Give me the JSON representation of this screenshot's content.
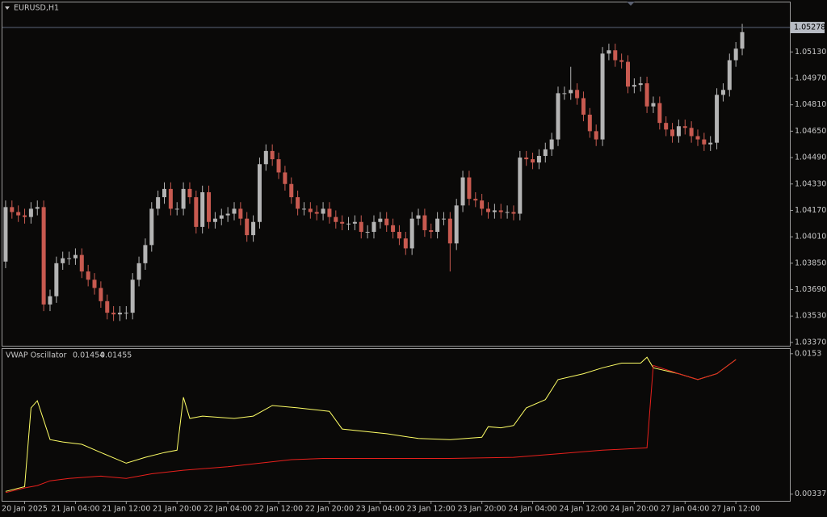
{
  "chart_data": [
    {
      "type": "candlestick",
      "title": "EURUSD,H1",
      "xlim": [
        -0.5,
        123.5
      ],
      "ylim": [
        1.0335,
        1.0543
      ],
      "up_color": "#b4b4b4",
      "down_color": "#c85a50",
      "current_price": 1.05278,
      "yticks": [
        {
          "value": 1.0513,
          "label": "1.05130"
        },
        {
          "value": 1.0497,
          "label": "1.04970"
        },
        {
          "value": 1.0481,
          "label": "1.04810"
        },
        {
          "value": 1.0465,
          "label": "1.04650"
        },
        {
          "value": 1.0449,
          "label": "1.04490"
        },
        {
          "value": 1.0433,
          "label": "1.04330"
        },
        {
          "value": 1.0417,
          "label": "1.04170"
        },
        {
          "value": 1.0401,
          "label": "1.04010"
        },
        {
          "value": 1.0385,
          "label": "1.03850"
        },
        {
          "value": 1.0369,
          "label": "1.03690"
        },
        {
          "value": 1.0353,
          "label": "1.03530"
        },
        {
          "value": 1.0337,
          "label": "1.03370"
        }
      ],
      "open": [
        1.0386,
        1.0419,
        1.0416,
        1.0414,
        1.0413,
        1.0418,
        1.0419,
        1.036,
        1.0365,
        1.0385,
        1.0388,
        1.0388,
        1.039,
        1.038,
        1.0375,
        1.037,
        1.0362,
        1.0355,
        1.0354,
        1.0355,
        1.0355,
        1.0375,
        1.0385,
        1.0396,
        1.0418,
        1.0425,
        1.043,
        1.0418,
        1.0418,
        1.043,
        1.0425,
        1.0407,
        1.0428,
        1.041,
        1.0412,
        1.0414,
        1.0415,
        1.0418,
        1.0412,
        1.0402,
        1.041,
        1.0445,
        1.0453,
        1.0448,
        1.044,
        1.0433,
        1.0425,
        1.0418,
        1.0418,
        1.0416,
        1.0415,
        1.0418,
        1.0413,
        1.041,
        1.0409,
        1.0409,
        1.041,
        1.0404,
        1.0404,
        1.041,
        1.0412,
        1.0408,
        1.0404,
        1.04,
        1.0394,
        1.0412,
        1.0414,
        1.0405,
        1.0404,
        1.0412,
        1.0412,
        1.0397,
        1.042,
        1.0437,
        1.0424,
        1.0423,
        1.0418,
        1.0416,
        1.0417,
        1.0416,
        1.0416,
        1.0415,
        1.0449,
        1.0448,
        1.0446,
        1.045,
        1.0454,
        1.046,
        1.0488,
        1.0488,
        1.049,
        1.0485,
        1.0475,
        1.0465,
        1.046,
        1.0512,
        1.0514,
        1.0508,
        1.0507,
        1.0492,
        1.0493,
        1.0494,
        1.048,
        1.0482,
        1.047,
        1.0466,
        1.0462,
        1.0468,
        1.0467,
        1.0462,
        1.046,
        1.0457,
        1.0458,
        1.0487,
        1.049,
        1.0508,
        1.0515
      ],
      "close": [
        1.0419,
        1.0416,
        1.0414,
        1.0413,
        1.0418,
        1.0419,
        1.036,
        1.0365,
        1.0385,
        1.0388,
        1.0388,
        1.039,
        1.038,
        1.0375,
        1.037,
        1.0362,
        1.0355,
        1.0354,
        1.0355,
        1.0355,
        1.0375,
        1.0385,
        1.0396,
        1.0418,
        1.0425,
        1.043,
        1.0418,
        1.0418,
        1.043,
        1.0425,
        1.0407,
        1.0428,
        1.041,
        1.0412,
        1.0414,
        1.0415,
        1.0418,
        1.0412,
        1.0402,
        1.041,
        1.0445,
        1.0453,
        1.0448,
        1.044,
        1.0433,
        1.0425,
        1.0418,
        1.0418,
        1.0416,
        1.0415,
        1.0418,
        1.0413,
        1.041,
        1.0409,
        1.0409,
        1.041,
        1.0404,
        1.0404,
        1.041,
        1.0412,
        1.0408,
        1.0404,
        1.04,
        1.0394,
        1.0412,
        1.0414,
        1.0405,
        1.0404,
        1.0412,
        1.0412,
        1.0397,
        1.042,
        1.0437,
        1.0424,
        1.0423,
        1.0418,
        1.0416,
        1.0417,
        1.0416,
        1.0416,
        1.0415,
        1.0449,
        1.0448,
        1.0446,
        1.045,
        1.0454,
        1.046,
        1.0488,
        1.0488,
        1.049,
        1.0485,
        1.0475,
        1.0465,
        1.046,
        1.0512,
        1.0514,
        1.0508,
        1.0507,
        1.0492,
        1.0493,
        1.0494,
        1.048,
        1.0482,
        1.047,
        1.0466,
        1.0462,
        1.0468,
        1.0467,
        1.0462,
        1.046,
        1.0457,
        1.0458,
        1.0487,
        1.049,
        1.0508,
        1.0515,
        1.0525
      ],
      "high": [
        1.0423,
        1.0423,
        1.042,
        1.0418,
        1.0422,
        1.0423,
        1.0423,
        1.0369,
        1.0389,
        1.0392,
        1.0392,
        1.0394,
        1.0394,
        1.0384,
        1.0379,
        1.0374,
        1.0366,
        1.0359,
        1.0359,
        1.0359,
        1.0379,
        1.0389,
        1.04,
        1.0422,
        1.0429,
        1.0434,
        1.0434,
        1.0422,
        1.0434,
        1.0434,
        1.0429,
        1.0432,
        1.0432,
        1.0416,
        1.0418,
        1.0419,
        1.0422,
        1.0422,
        1.0416,
        1.0414,
        1.0449,
        1.0457,
        1.0457,
        1.0452,
        1.0444,
        1.0437,
        1.0429,
        1.0422,
        1.0422,
        1.042,
        1.0422,
        1.0422,
        1.0417,
        1.0414,
        1.0413,
        1.0414,
        1.0414,
        1.0408,
        1.0414,
        1.0416,
        1.0416,
        1.0412,
        1.0408,
        1.0404,
        1.0416,
        1.0418,
        1.0418,
        1.0409,
        1.0416,
        1.0416,
        1.0416,
        1.0424,
        1.0441,
        1.0441,
        1.0428,
        1.0427,
        1.0422,
        1.0421,
        1.0421,
        1.042,
        1.042,
        1.0453,
        1.0453,
        1.0452,
        1.0454,
        1.0458,
        1.0464,
        1.0492,
        1.0492,
        1.0504,
        1.0494,
        1.0489,
        1.0479,
        1.0469,
        1.0516,
        1.0518,
        1.0518,
        1.0512,
        1.0511,
        1.0497,
        1.0498,
        1.0498,
        1.0486,
        1.0486,
        1.0474,
        1.047,
        1.0472,
        1.0472,
        1.0471,
        1.0466,
        1.0464,
        1.0462,
        1.0491,
        1.0494,
        1.0512,
        1.0519,
        1.053
      ],
      "low": [
        1.0382,
        1.0412,
        1.041,
        1.0409,
        1.0409,
        1.0414,
        1.0356,
        1.0356,
        1.0361,
        1.0381,
        1.0384,
        1.0384,
        1.0376,
        1.0371,
        1.0366,
        1.0358,
        1.0351,
        1.035,
        1.035,
        1.0351,
        1.0351,
        1.0371,
        1.0381,
        1.0392,
        1.0414,
        1.0421,
        1.0414,
        1.0414,
        1.0414,
        1.0421,
        1.0403,
        1.0403,
        1.0406,
        1.0406,
        1.0408,
        1.041,
        1.0411,
        1.0408,
        1.0398,
        1.0398,
        1.0406,
        1.0441,
        1.0444,
        1.0436,
        1.0429,
        1.0421,
        1.0414,
        1.0414,
        1.0412,
        1.0411,
        1.0411,
        1.0409,
        1.0406,
        1.0405,
        1.0405,
        1.0405,
        1.04,
        1.04,
        1.04,
        1.0406,
        1.0404,
        1.04,
        1.0396,
        1.039,
        1.039,
        1.0408,
        1.0401,
        1.04,
        1.04,
        1.0408,
        1.038,
        1.0393,
        1.0416,
        1.042,
        1.0419,
        1.0414,
        1.0412,
        1.0412,
        1.0412,
        1.0412,
        1.0411,
        1.0411,
        1.0444,
        1.0442,
        1.0442,
        1.0446,
        1.045,
        1.0456,
        1.0484,
        1.0484,
        1.0481,
        1.0471,
        1.0461,
        1.0456,
        1.0456,
        1.0508,
        1.0504,
        1.0503,
        1.0488,
        1.0488,
        1.0489,
        1.0476,
        1.0476,
        1.0466,
        1.0462,
        1.0458,
        1.0458,
        1.0463,
        1.0458,
        1.0456,
        1.0453,
        1.0453,
        1.0454,
        1.0483,
        1.0486,
        1.0504,
        1.0511
      ]
    },
    {
      "type": "line",
      "title": "VWAP Oscillator",
      "values_shown": [
        0.01454,
        0.01455
      ],
      "xlim": [
        -0.5,
        123.5
      ],
      "ylim": [
        0.0028,
        0.0157
      ],
      "yticks": [
        0.0153,
        0.00337
      ],
      "xticks": [
        {
          "value": 3,
          "label": "20 Jan 2025"
        },
        {
          "value": 11,
          "label": "21 Jan 04:00"
        },
        {
          "value": 19,
          "label": "21 Jan 12:00"
        },
        {
          "value": 27,
          "label": "21 Jan 20:00"
        },
        {
          "value": 35,
          "label": "22 Jan 04:00"
        },
        {
          "value": 43,
          "label": "22 Jan 12:00"
        },
        {
          "value": 51,
          "label": "22 Jan 20:00"
        },
        {
          "value": 59,
          "label": "23 Jan 04:00"
        },
        {
          "value": 67,
          "label": "23 Jan 12:00"
        },
        {
          "value": 75,
          "label": "23 Jan 20:00"
        },
        {
          "value": 83,
          "label": "24 Jan 04:00"
        },
        {
          "value": 91,
          "label": "24 Jan 12:00"
        },
        {
          "value": 99,
          "label": "24 Jan 20:00"
        },
        {
          "value": 107,
          "label": "27 Jan 04:00"
        },
        {
          "value": 115,
          "label": "27 Jan 12:00"
        }
      ],
      "series": [
        {
          "color": "#ffff66",
          "x": [
            0,
            3,
            4,
            5,
            7,
            9,
            12,
            15,
            19,
            22,
            25,
            27,
            28,
            29,
            31,
            36,
            39,
            42,
            46,
            51,
            53,
            60,
            65,
            70,
            75,
            76,
            78,
            80,
            82,
            85,
            87,
            91,
            94,
            97,
            100,
            101,
            102,
            106,
            109,
            112,
            115
          ],
          "values": [
            0.0036,
            0.004,
            0.0107,
            0.0113,
            0.008,
            0.0078,
            0.0076,
            0.0069,
            0.006,
            0.0065,
            0.0069,
            0.0071,
            0.0116,
            0.0098,
            0.01,
            0.0098,
            0.01,
            0.0109,
            0.0107,
            0.0104,
            0.0089,
            0.0085,
            0.0081,
            0.008,
            0.0082,
            0.0091,
            0.009,
            0.0092,
            0.0107,
            0.0114,
            0.0131,
            0.0136,
            0.0141,
            0.0145,
            0.0145,
            0.015,
            0.0141,
            0.0136,
            0.0131,
            0.0136,
            0.0148
          ]
        },
        {
          "color": "#e8201c",
          "x": [
            0,
            3,
            5,
            7,
            10,
            15,
            19,
            23,
            28,
            35,
            40,
            45,
            50,
            60,
            70,
            80,
            87,
            94,
            101,
            102,
            106,
            109,
            112,
            115
          ],
          "values": [
            0.0035,
            0.0039,
            0.0041,
            0.0045,
            0.0047,
            0.0049,
            0.0047,
            0.0051,
            0.0054,
            0.0057,
            0.006,
            0.0063,
            0.0064,
            0.0064,
            0.0064,
            0.0065,
            0.0068,
            0.0071,
            0.0073,
            0.0143,
            0.0136,
            0.0131,
            0.0136,
            0.0148
          ]
        }
      ]
    }
  ]
}
